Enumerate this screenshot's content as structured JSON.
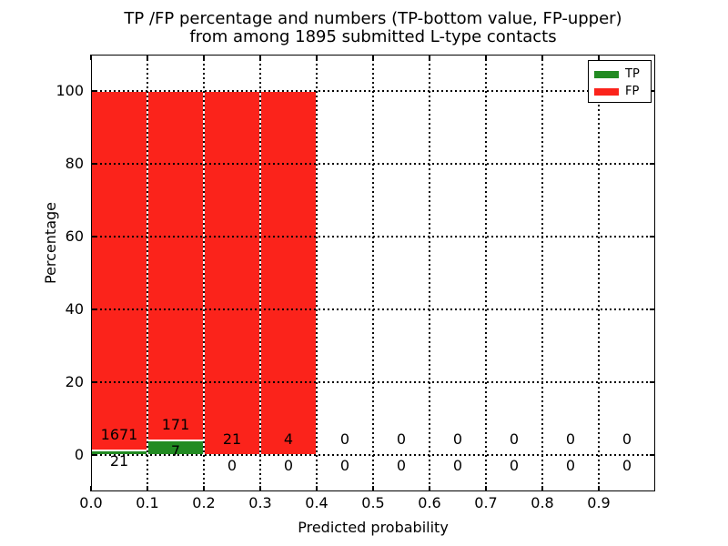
{
  "figure": {
    "title_line1": "TP /FP percentage and numbers (TP-bottom value, FP-upper)",
    "title_line2": "from among 1895 submitted L-type contacts"
  },
  "chart_data": {
    "type": "bar",
    "stacked": true,
    "normalized_to_percent": true,
    "title": "TP /FP percentage and numbers (TP-bottom value, FP-upper) from among 1895 submitted L-type contacts",
    "xlabel": "Predicted probability",
    "ylabel": "Percentage",
    "xlim": [
      0.0,
      1.0
    ],
    "ylim": [
      -10,
      110
    ],
    "xticks": [
      "0.0",
      "0.1",
      "0.2",
      "0.3",
      "0.4",
      "0.5",
      "0.6",
      "0.7",
      "0.8",
      "0.9"
    ],
    "yticks": [
      "0",
      "20",
      "40",
      "60",
      "80",
      "100"
    ],
    "grid": "dotted",
    "legend_position": "upper right",
    "total_contacts": 1895,
    "bin_width": 0.1,
    "categories": [
      "0.0-0.1",
      "0.1-0.2",
      "0.2-0.3",
      "0.3-0.4",
      "0.4-0.5",
      "0.5-0.6",
      "0.6-0.7",
      "0.7-0.8",
      "0.8-0.9",
      "0.9-1.0"
    ],
    "series": [
      {
        "name": "TP",
        "color": "#228b22",
        "counts": [
          21,
          7,
          0,
          0,
          0,
          0,
          0,
          0,
          0,
          0
        ]
      },
      {
        "name": "FP",
        "color": "#fb231b",
        "counts": [
          1671,
          171,
          21,
          4,
          0,
          0,
          0,
          0,
          0,
          0
        ]
      }
    ]
  },
  "legend": {
    "items": [
      {
        "label": "TP",
        "color": "#228b22"
      },
      {
        "label": "FP",
        "color": "#fb231b"
      }
    ]
  },
  "axis": {
    "xlabel": "Predicted probability",
    "ylabel": "Percentage"
  }
}
